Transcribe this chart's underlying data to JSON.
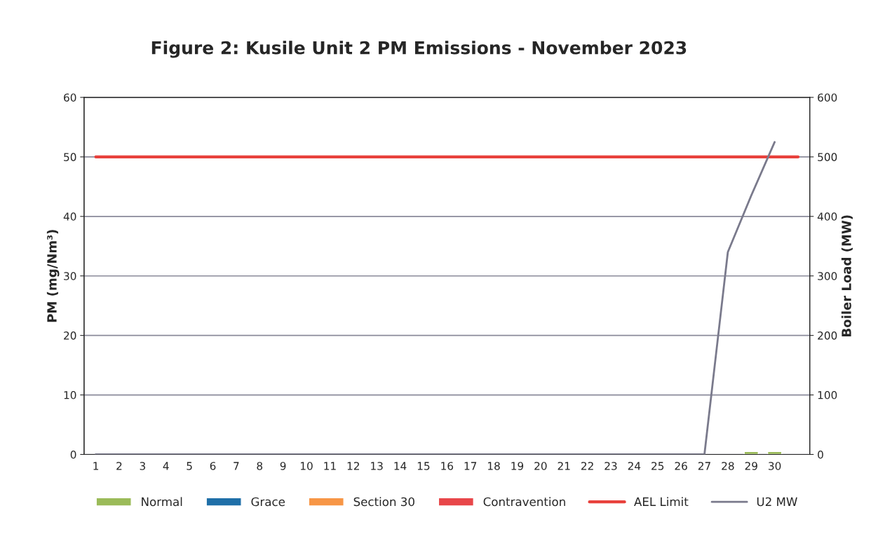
{
  "chart_data": {
    "type": "bar",
    "title": "Figure 2: Kusile Unit 2 PM Emissions - November 2023",
    "ylabel": "PM (mg/Nm³)",
    "y2label": "Boiler Load (MW)",
    "categories": [
      "1",
      "2",
      "3",
      "4",
      "5",
      "6",
      "7",
      "8",
      "9",
      "10",
      "11",
      "12",
      "13",
      "14",
      "15",
      "16",
      "17",
      "18",
      "19",
      "20",
      "21",
      "22",
      "23",
      "24",
      "25",
      "26",
      "27",
      "28",
      "29",
      "30",
      null
    ],
    "stacked": true,
    "series": [
      {
        "name": "Normal",
        "color": "#9bbb59",
        "values": [
          null,
          null,
          null,
          null,
          null,
          null,
          null,
          null,
          null,
          null,
          null,
          null,
          null,
          null,
          null,
          null,
          null,
          null,
          null,
          null,
          null,
          null,
          null,
          null,
          null,
          null,
          null,
          null,
          0.5,
          0.5,
          null
        ]
      },
      {
        "name": "Grace",
        "color": "#1f6fa8",
        "values": [
          null,
          null,
          null,
          null,
          null,
          null,
          null,
          null,
          null,
          null,
          null,
          null,
          null,
          null,
          null,
          null,
          null,
          null,
          null,
          null,
          null,
          null,
          null,
          null,
          null,
          null,
          null,
          null,
          null,
          null,
          null
        ]
      },
      {
        "name": "Section 30",
        "color": "#f79646",
        "values": [
          null,
          null,
          null,
          null,
          null,
          null,
          null,
          null,
          null,
          null,
          null,
          null,
          null,
          null,
          null,
          null,
          null,
          null,
          null,
          null,
          null,
          null,
          null,
          null,
          null,
          null,
          null,
          null,
          null,
          null,
          null
        ]
      },
      {
        "name": "Contravention",
        "color": "#e8474a",
        "values": [
          null,
          null,
          null,
          null,
          null,
          null,
          null,
          null,
          null,
          null,
          null,
          null,
          null,
          null,
          null,
          null,
          null,
          null,
          null,
          null,
          null,
          null,
          null,
          null,
          null,
          null,
          null,
          null,
          null,
          null,
          null
        ]
      },
      {
        "name": "AEL Limit",
        "type": "line",
        "color": "#e8413c",
        "values": [
          50,
          50,
          50,
          50,
          50,
          50,
          50,
          50,
          50,
          50,
          50,
          50,
          50,
          50,
          50,
          50,
          50,
          50,
          50,
          50,
          50,
          50,
          50,
          50,
          50,
          50,
          50,
          50,
          50,
          50,
          50
        ]
      },
      {
        "name": "U2 MW",
        "type": "line",
        "axis": "y2",
        "color": "#7a7a8c",
        "values": [
          0,
          0,
          0,
          0,
          0,
          0,
          0,
          0,
          0,
          0,
          0,
          0,
          0,
          0,
          0,
          0,
          0,
          0,
          0,
          0,
          0,
          0,
          0,
          0,
          0,
          0,
          0,
          340,
          435,
          525,
          null
        ]
      }
    ],
    "ylim": [
      0,
      60
    ],
    "yticks": [
      0,
      10,
      20,
      30,
      40,
      50,
      60
    ],
    "y2lim": [
      0,
      600
    ],
    "y2ticks": [
      0,
      100,
      200,
      300,
      400,
      500,
      600
    ],
    "grid": "y",
    "legend": "bottom"
  }
}
